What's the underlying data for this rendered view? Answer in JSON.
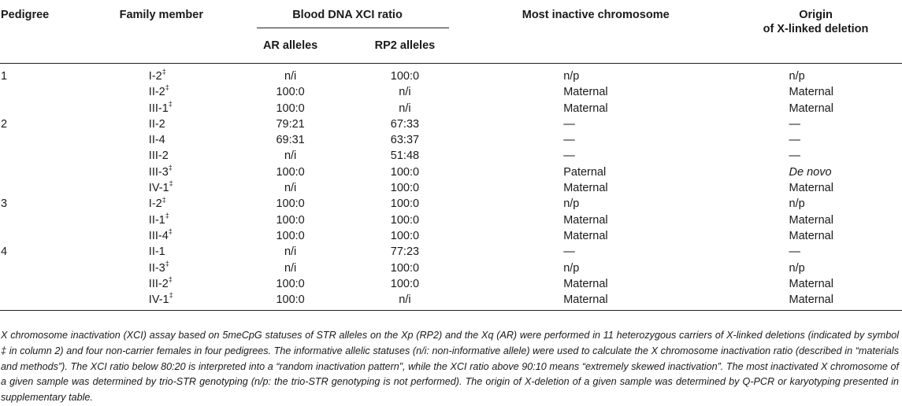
{
  "header": {
    "pedigree": "Pedigree",
    "family_member": "Family member",
    "xci_group": "Blood DNA XCI ratio",
    "ar_alleles": "AR alleles",
    "rp2_alleles": "RP2 alleles",
    "most_inactive": "Most inactive chromosome",
    "origin_line1": "Origin",
    "origin_line2": "of X-linked deletion"
  },
  "carrier_symbol": "‡",
  "rows": [
    {
      "pedigree": "1",
      "member": "I-2",
      "carrier": true,
      "ar": "n/i",
      "rp2": "100:0",
      "inactive": "n/p",
      "origin": "n/p"
    },
    {
      "pedigree": "",
      "member": "II-2",
      "carrier": true,
      "ar": "100:0",
      "rp2": "n/i",
      "inactive": "Maternal",
      "origin": "Maternal"
    },
    {
      "pedigree": "",
      "member": "III-1",
      "carrier": true,
      "ar": "100:0",
      "rp2": "n/i",
      "inactive": "Maternal",
      "origin": "Maternal"
    },
    {
      "pedigree": "2",
      "member": "II-2",
      "carrier": false,
      "ar": "79:21",
      "rp2": "67:33",
      "inactive": "—",
      "origin": "—"
    },
    {
      "pedigree": "",
      "member": "II-4",
      "carrier": false,
      "ar": "69:31",
      "rp2": "63:37",
      "inactive": "—",
      "origin": "—"
    },
    {
      "pedigree": "",
      "member": "III-2",
      "carrier": false,
      "ar": "n/i",
      "rp2": "51:48",
      "inactive": "—",
      "origin": "—"
    },
    {
      "pedigree": "",
      "member": "III-3",
      "carrier": true,
      "ar": "100:0",
      "rp2": "100:0",
      "inactive": "Paternal",
      "origin": "De novo"
    },
    {
      "pedigree": "",
      "member": "IV-1",
      "carrier": true,
      "ar": "n/i",
      "rp2": "100:0",
      "inactive": "Maternal",
      "origin": "Maternal"
    },
    {
      "pedigree": "3",
      "member": "I-2",
      "carrier": true,
      "ar": "100:0",
      "rp2": "100:0",
      "inactive": "n/p",
      "origin": "n/p"
    },
    {
      "pedigree": "",
      "member": "II-1",
      "carrier": true,
      "ar": "100:0",
      "rp2": "100:0",
      "inactive": "Maternal",
      "origin": "Maternal"
    },
    {
      "pedigree": "",
      "member": "III-4",
      "carrier": true,
      "ar": "100:0",
      "rp2": "100:0",
      "inactive": "Maternal",
      "origin": "Maternal"
    },
    {
      "pedigree": "4",
      "member": "II-1",
      "carrier": false,
      "ar": "n/i",
      "rp2": "77:23",
      "inactive": "—",
      "origin": "—"
    },
    {
      "pedigree": "",
      "member": "II-3",
      "carrier": true,
      "ar": "n/i",
      "rp2": "100:0",
      "inactive": "n/p",
      "origin": "n/p"
    },
    {
      "pedigree": "",
      "member": "III-2",
      "carrier": true,
      "ar": "100:0",
      "rp2": "100:0",
      "inactive": "Maternal",
      "origin": "Maternal"
    },
    {
      "pedigree": "",
      "member": "IV-1",
      "carrier": true,
      "ar": "100:0",
      "rp2": "n/i",
      "inactive": "Maternal",
      "origin": "Maternal"
    }
  ],
  "footnote": "X chromosome inactivation (XCI) assay based on 5meCpG statuses of STR alleles on the Xp (RP2) and the Xq (AR) were performed in 11 heterozygous carriers of X-linked deletions (indicated by symbol ‡ in column 2) and four non-carrier females in four pedigrees. The informative allelic statuses (n/i: non-informative allele) were used to calculate the X chromosome inactivation ratio (described in “materials and methods”). The XCI ratio below 80:20 is interpreted into a “random inactivation pattern”, while the XCI ratio above 90:10 means “extremely skewed inactivation”. The most inactivated X chromosome of a given sample was determined by trio-STR genotyping (n/p: the trio-STR genotyping is not performed). The origin of X-deletion of a given sample was determined by Q-PCR or karyotyping presented in supplementary table."
}
